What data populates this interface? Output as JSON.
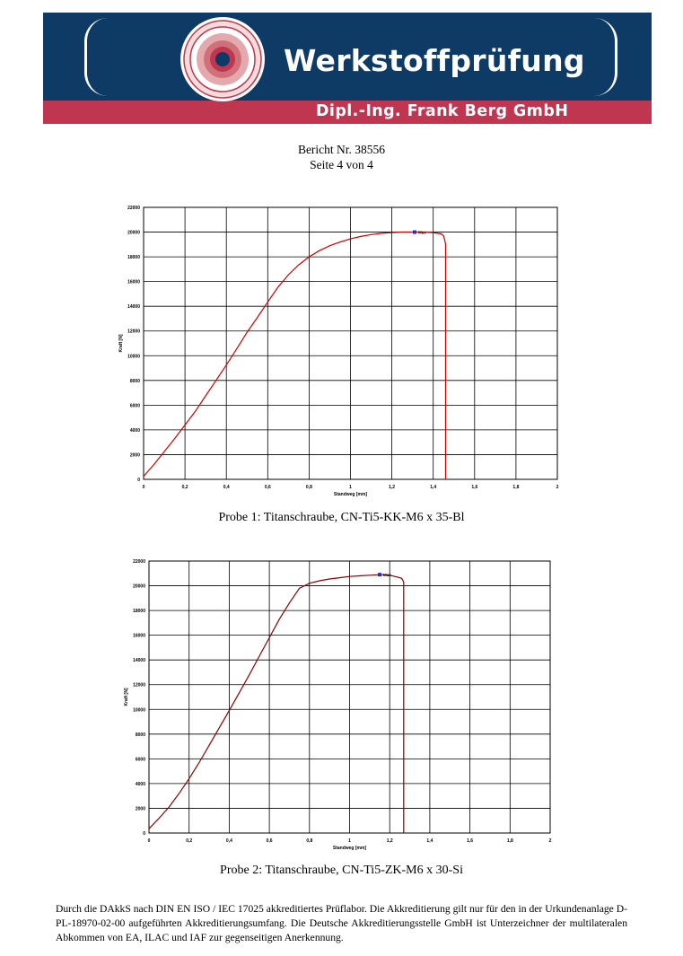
{
  "header": {
    "title": "Werkstoffprüfung",
    "subtitle": "Dipl.-Ing. Frank Berg GmbH",
    "colors": {
      "blue": "#0e3a66",
      "red": "#c0354f"
    }
  },
  "report": {
    "number_line": "Bericht Nr. 38556",
    "page_line": "Seite 4 von 4"
  },
  "chart_data": [
    {
      "type": "line",
      "xlabel": "Standweg [mm]",
      "ylabel": "Kraft [N]",
      "xlim": [
        0,
        2
      ],
      "ylim": [
        0,
        22000
      ],
      "xticks": [
        "0",
        "0,2",
        "0,4",
        "0,6",
        "0,8",
        "1",
        "1,2",
        "1,4",
        "1,6",
        "1,8",
        "2"
      ],
      "yticks": [
        "0",
        "2000",
        "4000",
        "6000",
        "8000",
        "10000",
        "12000",
        "14000",
        "16000",
        "18000",
        "20000",
        "22000"
      ],
      "grid": true,
      "line_color": "#cc0000",
      "marker": {
        "x": 1.31,
        "y": 20000,
        "label": "Max",
        "color": "#1f2fd6"
      },
      "series": [
        {
          "x": [
            0,
            0.05,
            0.1,
            0.15,
            0.2,
            0.25,
            0.3,
            0.35,
            0.4,
            0.45,
            0.5,
            0.55,
            0.6,
            0.65,
            0.7,
            0.75,
            0.8,
            0.85,
            0.9,
            0.95,
            1.0,
            1.05,
            1.1,
            1.15,
            1.2,
            1.25,
            1.3,
            1.35,
            1.4,
            1.42,
            1.44,
            1.45,
            1.455,
            1.46,
            1.46
          ],
          "y": [
            250,
            1200,
            2250,
            3300,
            4400,
            5500,
            6750,
            8000,
            9250,
            10550,
            11900,
            13100,
            14350,
            15550,
            16550,
            17350,
            18000,
            18500,
            18900,
            19200,
            19450,
            19650,
            19800,
            19900,
            19950,
            20000,
            20000,
            20000,
            19950,
            19900,
            19850,
            19700,
            19400,
            19000,
            0
          ]
        }
      ],
      "caption": "Probe 1: Titanschraube, CN-Ti5-KK-M6 x 35-Bl"
    },
    {
      "type": "line",
      "xlabel": "Standweg [mm]",
      "ylabel": "Kraft [N]",
      "xlim": [
        0,
        2
      ],
      "ylim": [
        0,
        22000
      ],
      "xticks": [
        "0",
        "0,2",
        "0,4",
        "0,6",
        "0,8",
        "1",
        "1,2",
        "1,4",
        "1,6",
        "1,8",
        "2"
      ],
      "yticks": [
        "0",
        "2000",
        "4000",
        "6000",
        "8000",
        "10000",
        "12000",
        "14000",
        "16000",
        "18000",
        "20000",
        "22000"
      ],
      "grid": true,
      "line_color": "#8b0000",
      "marker": {
        "x": 1.15,
        "y": 20900,
        "label": "Max",
        "color": "#1f2fd6"
      },
      "series": [
        {
          "x": [
            0,
            0.05,
            0.1,
            0.15,
            0.2,
            0.25,
            0.3,
            0.35,
            0.4,
            0.45,
            0.5,
            0.55,
            0.6,
            0.65,
            0.7,
            0.75,
            0.8,
            0.85,
            0.9,
            0.95,
            1.0,
            1.05,
            1.1,
            1.15,
            1.2,
            1.24,
            1.26,
            1.265,
            1.27,
            1.27
          ],
          "y": [
            350,
            1200,
            2100,
            3200,
            4400,
            5700,
            7100,
            8500,
            9900,
            11350,
            12800,
            14300,
            15800,
            17300,
            18600,
            19800,
            20200,
            20400,
            20550,
            20650,
            20750,
            20800,
            20850,
            20900,
            20850,
            20700,
            20600,
            20450,
            20300,
            0
          ]
        }
      ],
      "caption": "Probe 2: Titanschraube, CN-Ti5-ZK-M6 x 30-Si"
    }
  ],
  "footer": {
    "text": "Durch die DAkkS nach DIN EN ISO / IEC 17025 akkreditiertes Prüflabor. Die Akkreditierung gilt nur für den in der Urkundenanlage D-PL-18970-02-00 aufgeführten Akkreditierungsumfang. Die Deutsche Akkreditierungsstelle GmbH ist Unterzeichner der multilateralen Abkommen von EA, ILAC und IAF zur gegenseitigen Anerkennung."
  }
}
